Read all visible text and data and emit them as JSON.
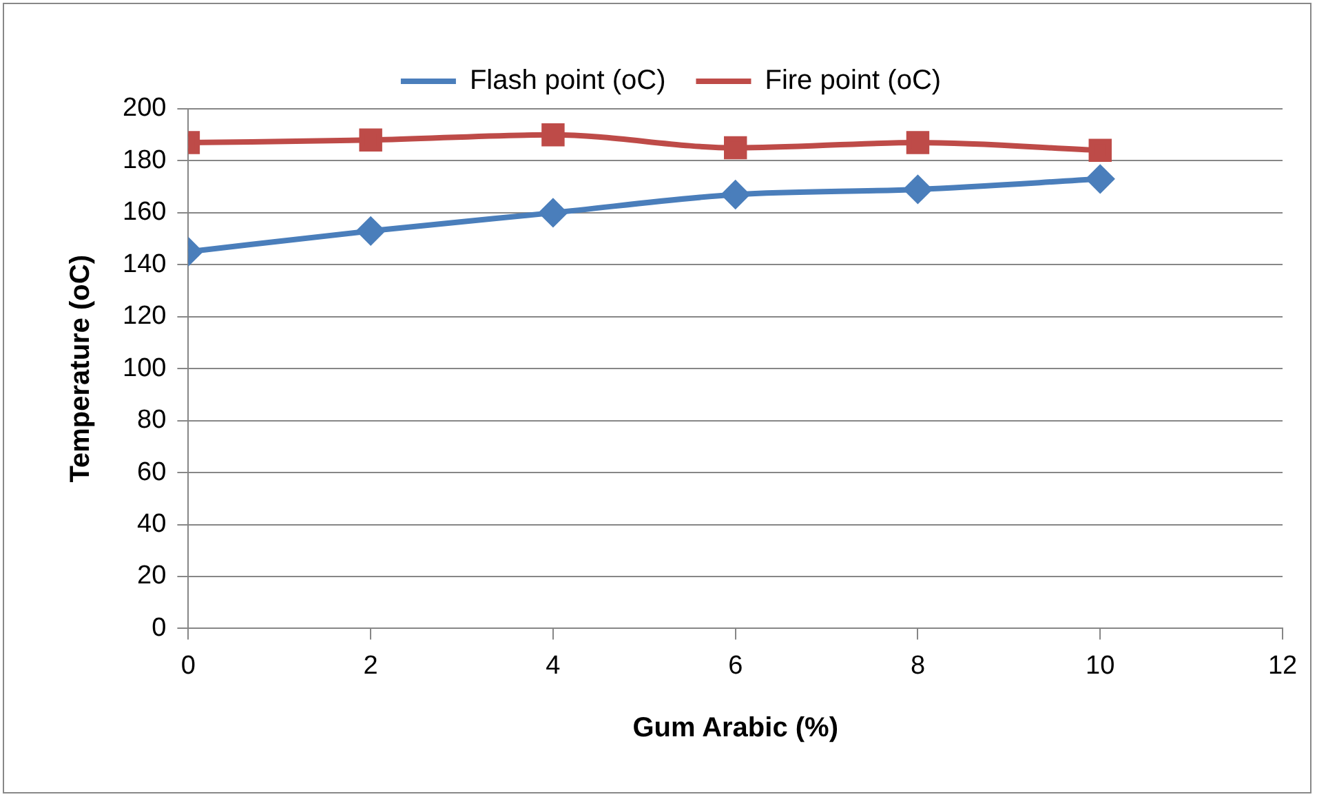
{
  "chart_data": {
    "type": "line",
    "xlabel": "Gum Arabic (%)",
    "ylabel": "Temperature (oC)",
    "x": [
      0,
      2,
      4,
      6,
      8,
      10
    ],
    "series": [
      {
        "name": "Flash point (oC)",
        "color": "#4a7ebb",
        "marker": "diamond",
        "values": [
          145,
          153,
          160,
          167,
          169,
          173
        ]
      },
      {
        "name": "Fire point (oC)",
        "color": "#be4b48",
        "marker": "square",
        "values": [
          187,
          188,
          190,
          185,
          187,
          184
        ]
      }
    ],
    "xlim": [
      0,
      12
    ],
    "xticks": [
      0,
      2,
      4,
      6,
      8,
      10,
      12
    ],
    "ylim": [
      0,
      200
    ],
    "yticks": [
      0,
      20,
      40,
      60,
      80,
      100,
      120,
      140,
      160,
      180,
      200
    ],
    "grid": "y",
    "legend": "top",
    "line_style": "solid"
  }
}
